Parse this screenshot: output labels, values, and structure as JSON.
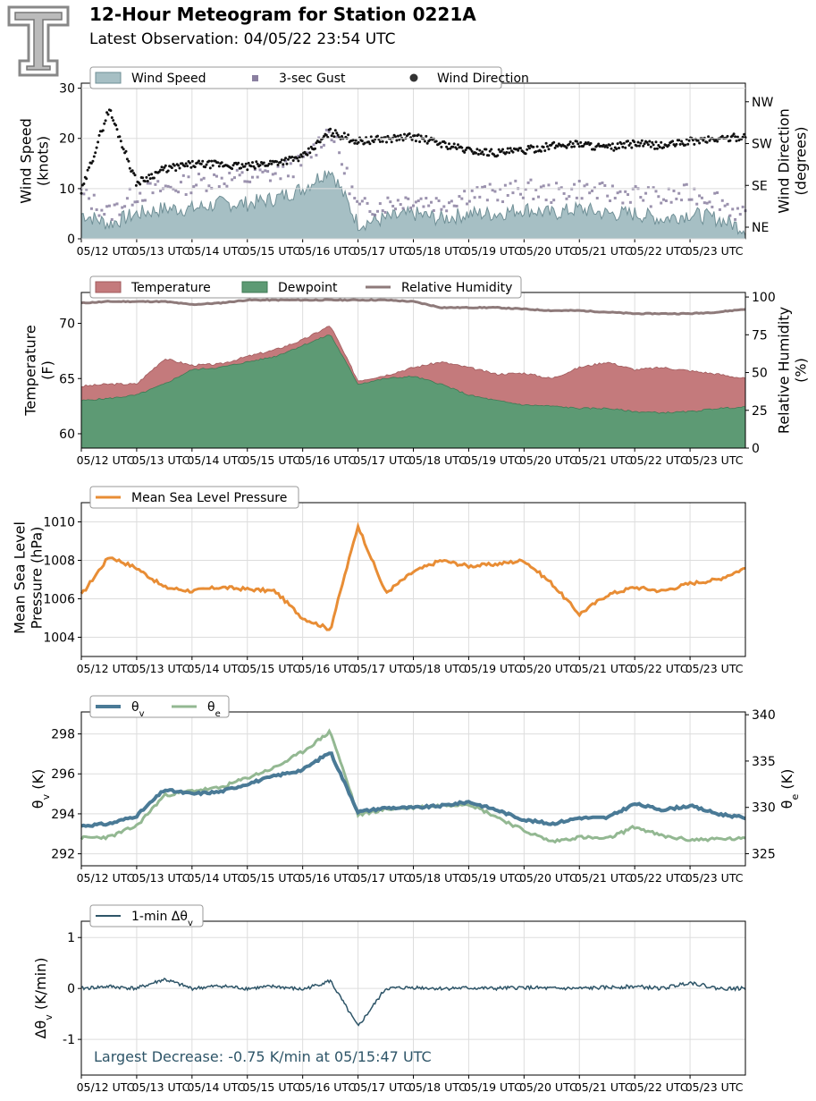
{
  "header": {
    "title": "12-Hour Meteogram for Station 0221A",
    "subtitle": "Latest Observation: 04/05/22 23:54 UTC",
    "logo_letter": "T"
  },
  "x_ticks": [
    "05/12 UTC",
    "05/13 UTC",
    "05/14 UTC",
    "05/15 UTC",
    "05/16 UTC",
    "05/17 UTC",
    "05/18 UTC",
    "05/19 UTC",
    "05/20 UTC",
    "05/21 UTC",
    "05/22 UTC",
    "05/23 UTC"
  ],
  "colors": {
    "wind_fill": "#a6bfc4",
    "wind_line": "#6f8f96",
    "gust": "#8a7fa0",
    "direction": "#111111",
    "temp": "#c47a7c",
    "dew": "#5d9a74",
    "rh": "#8e7a7a",
    "pressure": "#e88d35",
    "theta_v": "#4a7a96",
    "theta_e": "#93b892",
    "dtheta": "#2e5568",
    "grid": "#dddddd",
    "annotation": "#2e5568"
  },
  "chart_data": [
    {
      "id": "wind",
      "type": "area",
      "ylabel": "Wind Speed\n(knots)",
      "ylabel2": "Wind Direction\n(degrees)",
      "ylim": [
        0,
        31
      ],
      "yticks": [
        0,
        10,
        20,
        30
      ],
      "y2lim": [
        20,
        355
      ],
      "y2ticks": [
        {
          "v": 45,
          "label": "NE"
        },
        {
          "v": 135,
          "label": "SE"
        },
        {
          "v": 225,
          "label": "SW"
        },
        {
          "v": 315,
          "label": "NW"
        }
      ],
      "legend": [
        "Wind Speed",
        "3-sec Gust",
        "Wind Direction"
      ],
      "legend_position": "top-left",
      "x": [
        0,
        0.5,
        1,
        1.5,
        2,
        2.5,
        3,
        3.5,
        4,
        4.5,
        5,
        5.5,
        6,
        6.5,
        7,
        7.5,
        8,
        8.5,
        9,
        9.5,
        10,
        10.5,
        11,
        11.5,
        12
      ],
      "series": [
        {
          "name": "Wind Speed",
          "values": [
            5,
            3,
            5,
            6,
            6,
            7,
            7,
            8,
            10,
            14,
            3,
            4,
            5,
            4,
            5,
            5,
            6,
            5,
            6,
            5,
            5,
            4,
            5,
            4,
            2
          ]
        },
        {
          "name": "3-sec Gust",
          "values": [
            9,
            5,
            9,
            10,
            11,
            12,
            12,
            13,
            15,
            22,
            6,
            7,
            8,
            7,
            9,
            9,
            10,
            9,
            10,
            9,
            9,
            8,
            9,
            8,
            4
          ]
        },
        {
          "name": "Wind Direction",
          "values": [
            120,
            300,
            140,
            170,
            180,
            180,
            175,
            185,
            195,
            250,
            230,
            235,
            240,
            225,
            210,
            205,
            210,
            220,
            225,
            215,
            225,
            220,
            230,
            235,
            240
          ]
        }
      ]
    },
    {
      "id": "temp",
      "type": "area",
      "ylabel": "Temperature\n(F)",
      "ylabel2": "Relative Humidity\n(%)",
      "ylim": [
        58.7,
        72.8
      ],
      "yticks": [
        60,
        65,
        70
      ],
      "y2lim": [
        0,
        103
      ],
      "y2ticks": [
        0,
        25,
        50,
        75,
        100
      ],
      "legend": [
        "Temperature",
        "Dewpoint",
        "Relative Humidity"
      ],
      "legend_position": "top-left",
      "x": [
        0,
        0.5,
        1,
        1.5,
        2,
        2.5,
        3,
        3.5,
        4,
        4.5,
        5,
        5.5,
        6,
        6.5,
        7,
        7.5,
        8,
        8.5,
        9,
        9.5,
        10,
        10.5,
        11,
        11.5,
        12
      ],
      "series": [
        {
          "name": "Temperature",
          "values": [
            64.3,
            64.5,
            64.5,
            66.8,
            66.2,
            66.3,
            67.0,
            67.6,
            68.5,
            69.8,
            64.8,
            65.3,
            66.0,
            66.5,
            66.0,
            65.4,
            65.5,
            65.0,
            66.0,
            66.5,
            65.8,
            66.0,
            65.7,
            65.4,
            65.0
          ]
        },
        {
          "name": "Dewpoint",
          "values": [
            63.0,
            63.2,
            63.5,
            64.5,
            65.8,
            66.0,
            66.5,
            67.0,
            68.0,
            69.0,
            64.5,
            65.0,
            65.2,
            64.5,
            63.5,
            63.0,
            62.6,
            62.5,
            62.3,
            62.3,
            62.0,
            61.9,
            62.0,
            62.3,
            62.4
          ]
        },
        {
          "name": "Relative Humidity",
          "values": [
            96,
            97,
            97,
            97,
            95,
            96,
            98,
            98,
            98,
            98,
            98,
            98,
            97,
            93,
            93,
            93,
            92,
            91,
            91,
            90,
            89,
            89,
            89,
            90,
            92
          ]
        }
      ]
    },
    {
      "id": "pressure",
      "type": "line",
      "ylabel": "Mean Sea Level\nPressure (hPa)",
      "ylim": [
        1003,
        1011
      ],
      "yticks": [
        1004,
        1006,
        1008,
        1010
      ],
      "legend": [
        "Mean Sea Level Pressure"
      ],
      "legend_position": "top-left",
      "x": [
        0,
        0.5,
        1,
        1.5,
        2,
        2.5,
        3,
        3.5,
        4,
        4.5,
        5,
        5.5,
        6,
        6.5,
        7,
        7.5,
        8,
        8.5,
        9,
        9.5,
        10,
        10.5,
        11,
        11.5,
        12
      ],
      "series": [
        {
          "name": "Mean Sea Level Pressure",
          "values": [
            1006.2,
            1008.2,
            1007.6,
            1006.6,
            1006.4,
            1006.6,
            1006.5,
            1006.4,
            1005.0,
            1004.4,
            1009.8,
            1006.3,
            1007.4,
            1008.0,
            1007.7,
            1007.8,
            1008.0,
            1006.8,
            1005.2,
            1006.2,
            1006.6,
            1006.4,
            1006.8,
            1007.0,
            1007.6
          ]
        }
      ]
    },
    {
      "id": "theta",
      "type": "line",
      "ylabel": "θv (K)",
      "ylabel2": "θe (K)",
      "ylim": [
        291.4,
        299.1
      ],
      "yticks": [
        292,
        294,
        296,
        298
      ],
      "y2lim": [
        323.7,
        340.3
      ],
      "y2ticks": [
        325,
        330,
        335,
        340
      ],
      "legend": [
        "θv",
        "θe"
      ],
      "legend_position": "top-left",
      "x": [
        0,
        0.5,
        1,
        1.5,
        2,
        2.5,
        3,
        3.5,
        4,
        4.5,
        5,
        5.5,
        6,
        6.5,
        7,
        7.5,
        8,
        8.5,
        9,
        9.5,
        10,
        10.5,
        11,
        11.5,
        12
      ],
      "series": [
        {
          "name": "θv",
          "values": [
            293.4,
            293.5,
            293.9,
            295.2,
            295.0,
            295.1,
            295.5,
            295.9,
            296.2,
            297.1,
            294.1,
            294.3,
            294.3,
            294.4,
            294.6,
            294.2,
            293.7,
            293.5,
            293.8,
            293.8,
            294.5,
            294.2,
            294.4,
            294.0,
            293.8
          ]
        },
        {
          "name": "θe",
          "values": [
            326.7,
            326.8,
            328.0,
            331.3,
            331.8,
            332.1,
            333.2,
            334.3,
            336.0,
            338.2,
            329.2,
            329.8,
            330.0,
            330.2,
            330.4,
            329.0,
            327.5,
            326.3,
            326.8,
            326.6,
            327.9,
            326.9,
            326.5,
            326.6,
            326.6
          ]
        }
      ]
    },
    {
      "id": "dtheta",
      "type": "line",
      "ylabel": "Δθv (K/min)",
      "ylim": [
        -1.7,
        1.32
      ],
      "yticks": [
        -1,
        0,
        1
      ],
      "legend": [
        "1-min Δθv"
      ],
      "legend_position": "top-left",
      "annotation": "Largest Decrease: -0.75 K/min at 05/15:47 UTC",
      "x": [
        0,
        0.5,
        1,
        1.5,
        2,
        2.5,
        3,
        3.5,
        4,
        4.5,
        5,
        5.5,
        6,
        6.5,
        7,
        7.5,
        8,
        8.5,
        9,
        9.5,
        10,
        10.5,
        11,
        11.5,
        12
      ],
      "series": [
        {
          "name": "1-min Δθv",
          "values": [
            0.0,
            0.04,
            0.0,
            0.18,
            0.0,
            0.05,
            0.0,
            0.04,
            -0.02,
            0.15,
            -0.75,
            0.0,
            0.02,
            0.0,
            0.01,
            0.0,
            0.02,
            0.0,
            0.0,
            0.02,
            0.04,
            0.0,
            0.12,
            0.0,
            0.0
          ]
        }
      ]
    }
  ]
}
